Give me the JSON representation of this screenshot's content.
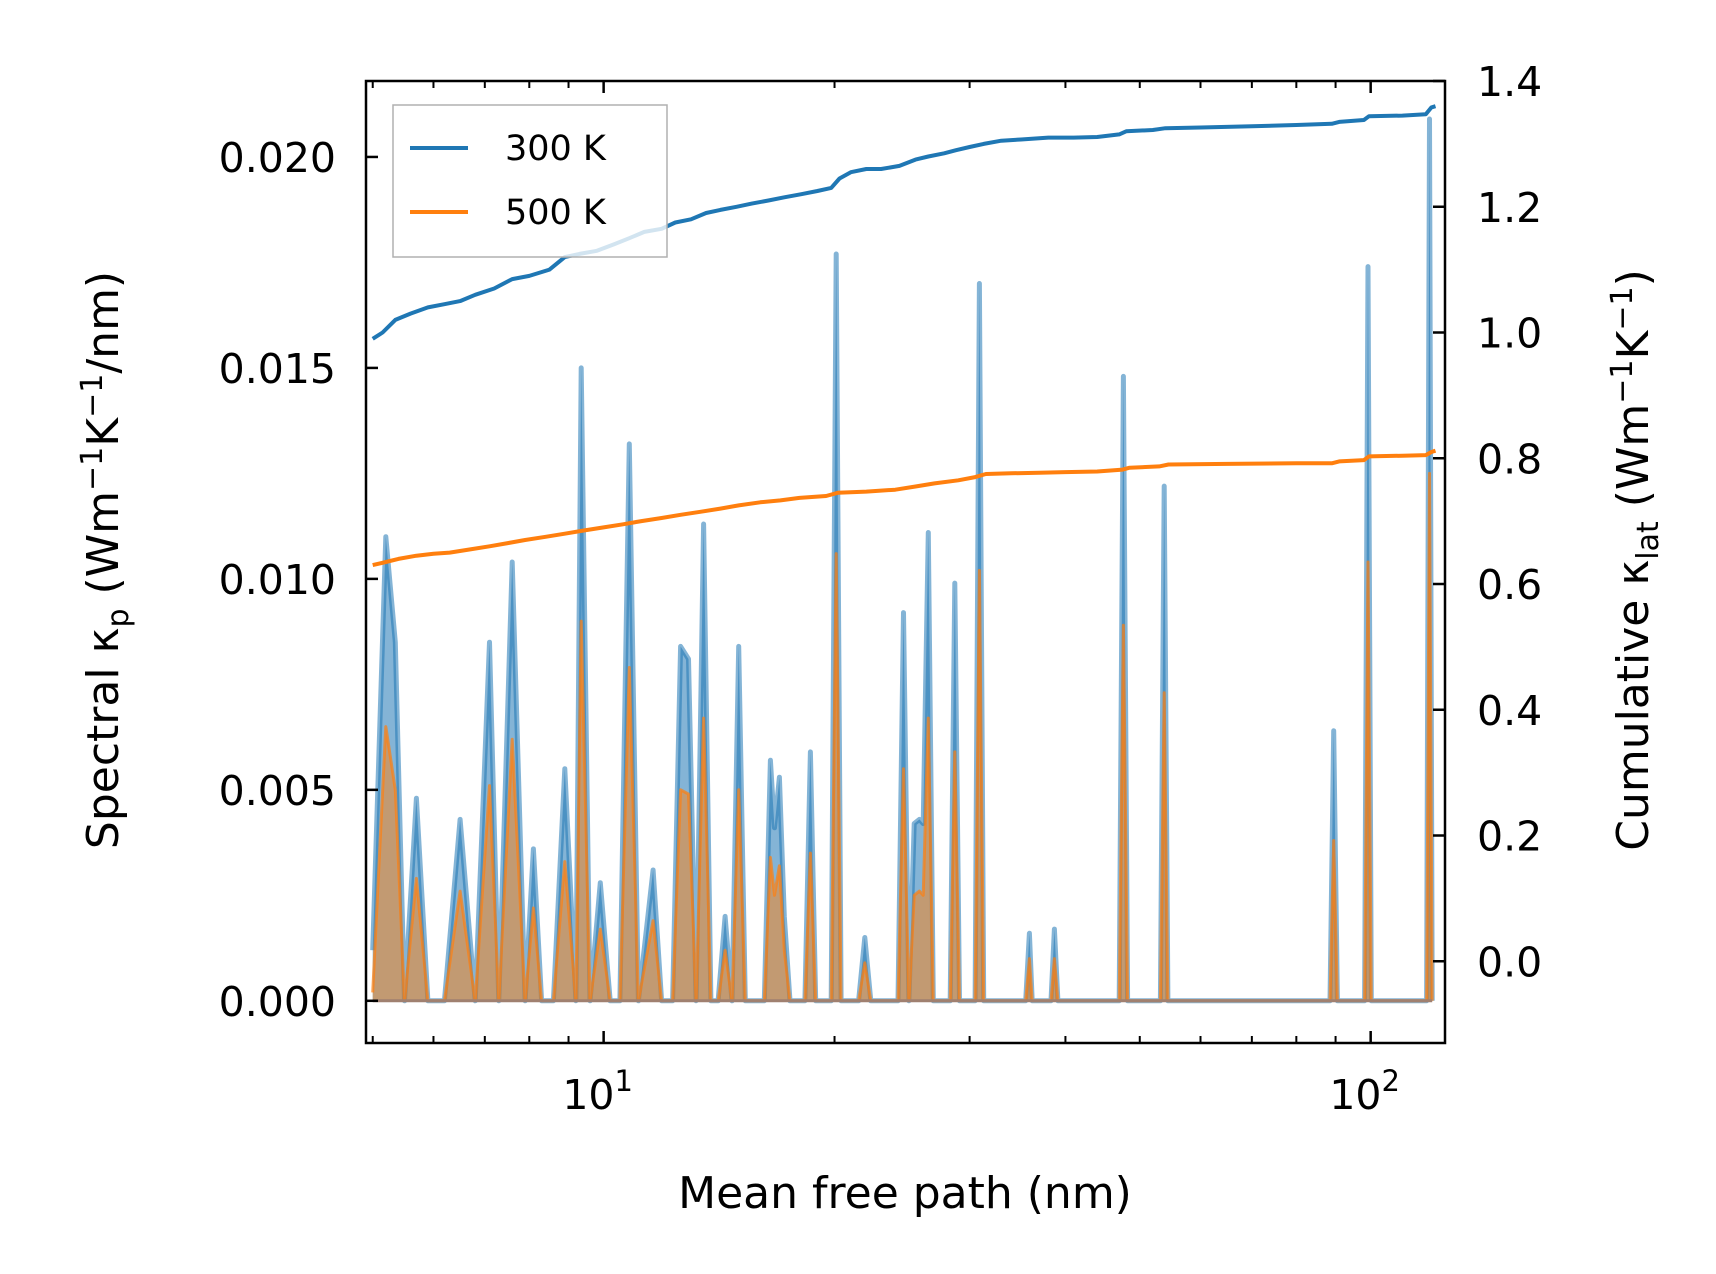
{
  "chart_data": {
    "type": "line",
    "xscale": "log",
    "xlim": [
      4.9,
      125
    ],
    "ylim_left": [
      -0.001,
      0.0218
    ],
    "ylim_right": [
      -0.13,
      1.4
    ],
    "xlabel": "Mean free path (nm)",
    "ylabel_left": {
      "main": "Spectral κ",
      "sub": "p",
      "units": " (Wm",
      "sup1": "−1",
      "mid": "K",
      "sup2": "−1",
      "tail": "/nm)"
    },
    "ylabel_right": {
      "main": "Cumulative κ",
      "sub": "lat",
      "units": " (Wm",
      "sup1": "−1",
      "mid": "K",
      "sup2": "−1",
      "tail": ")"
    },
    "x_ticks": [
      {
        "value": 10,
        "base": "10",
        "exp": "1"
      },
      {
        "value": 100,
        "base": "10",
        "exp": "2"
      }
    ],
    "y_ticks_left": [
      {
        "value": 0.0,
        "label": "0.000"
      },
      {
        "value": 0.005,
        "label": "0.005"
      },
      {
        "value": 0.01,
        "label": "0.010"
      },
      {
        "value": 0.015,
        "label": "0.015"
      },
      {
        "value": 0.02,
        "label": "0.020"
      }
    ],
    "y_ticks_right": [
      {
        "value": 0.0,
        "label": "0.0"
      },
      {
        "value": 0.2,
        "label": "0.2"
      },
      {
        "value": 0.4,
        "label": "0.4"
      },
      {
        "value": 0.6,
        "label": "0.6"
      },
      {
        "value": 0.8,
        "label": "0.8"
      },
      {
        "value": 1.0,
        "label": "1.0"
      },
      {
        "value": 1.2,
        "label": "1.2"
      },
      {
        "value": 1.4,
        "label": "1.4"
      }
    ],
    "legend": {
      "position": "upper-left",
      "entries": [
        {
          "label": "300 K",
          "color": "#1f77b4"
        },
        {
          "label": "500 K",
          "color": "#ff7f0e"
        }
      ]
    },
    "series": [
      {
        "name": "300 K",
        "color": "#1f77b4",
        "spectral": [
          [
            5.0,
            0.0012
          ],
          [
            5.2,
            0.011
          ],
          [
            5.35,
            0.0085
          ],
          [
            5.5,
            0.0
          ],
          [
            5.7,
            0.0048
          ],
          [
            5.9,
            0.0
          ],
          [
            6.2,
            0.0
          ],
          [
            6.5,
            0.0043
          ],
          [
            6.8,
            0.0
          ],
          [
            7.1,
            0.0085
          ],
          [
            7.3,
            0.0
          ],
          [
            7.6,
            0.0104
          ],
          [
            7.9,
            0.0
          ],
          [
            8.1,
            0.0036
          ],
          [
            8.3,
            0.0
          ],
          [
            8.6,
            0.0
          ],
          [
            8.9,
            0.0055
          ],
          [
            9.2,
            0.0
          ],
          [
            9.35,
            0.015
          ],
          [
            9.6,
            0.0
          ],
          [
            9.9,
            0.0028
          ],
          [
            10.2,
            0.0
          ],
          [
            10.5,
            0.0
          ],
          [
            10.8,
            0.0132
          ],
          [
            11.1,
            0.0
          ],
          [
            11.6,
            0.0031
          ],
          [
            11.9,
            0.0
          ],
          [
            12.3,
            0.0
          ],
          [
            12.6,
            0.0084
          ],
          [
            12.9,
            0.0081
          ],
          [
            13.2,
            0.0
          ],
          [
            13.5,
            0.0113
          ],
          [
            13.8,
            0.0
          ],
          [
            14.1,
            0.0
          ],
          [
            14.4,
            0.002
          ],
          [
            14.7,
            0.0
          ],
          [
            15.0,
            0.0084
          ],
          [
            15.3,
            0.0
          ],
          [
            16.2,
            0.0
          ],
          [
            16.5,
            0.0057
          ],
          [
            16.7,
            0.0041
          ],
          [
            16.95,
            0.0053
          ],
          [
            17.2,
            0.002
          ],
          [
            17.5,
            0.0
          ],
          [
            18.3,
            0.0
          ],
          [
            18.6,
            0.0059
          ],
          [
            18.9,
            0.0
          ],
          [
            19.8,
            0.0
          ],
          [
            20.1,
            0.0177
          ],
          [
            20.4,
            0.0
          ],
          [
            21.5,
            0.0
          ],
          [
            21.9,
            0.0015
          ],
          [
            22.3,
            0.0
          ],
          [
            24.2,
            0.0
          ],
          [
            24.6,
            0.0092
          ],
          [
            25.0,
            0.0
          ],
          [
            25.4,
            0.0042
          ],
          [
            25.8,
            0.0043
          ],
          [
            26.1,
            0.0042
          ],
          [
            26.5,
            0.0111
          ],
          [
            26.9,
            0.0
          ],
          [
            28.3,
            0.0
          ],
          [
            28.7,
            0.0099
          ],
          [
            29.1,
            0.0
          ],
          [
            30.5,
            0.0
          ],
          [
            30.9,
            0.017
          ],
          [
            31.3,
            0.0
          ],
          [
            35.5,
            0.0
          ],
          [
            35.9,
            0.0016
          ],
          [
            36.2,
            0.0
          ],
          [
            38.3,
            0.0
          ],
          [
            38.7,
            0.0017
          ],
          [
            39.1,
            0.0
          ],
          [
            47.0,
            0.0
          ],
          [
            47.6,
            0.0148
          ],
          [
            48.2,
            0.0
          ],
          [
            53.2,
            0.0
          ],
          [
            53.8,
            0.0122
          ],
          [
            54.4,
            0.0
          ],
          [
            88.5,
            0.0
          ],
          [
            89.5,
            0.0064
          ],
          [
            90.5,
            0.0
          ],
          [
            98.2,
            0.0
          ],
          [
            99.2,
            0.0174
          ],
          [
            100.2,
            0.0
          ],
          [
            118.3,
            0.0
          ],
          [
            119.3,
            0.0209
          ],
          [
            120.3,
            0.0
          ]
        ],
        "cumulative": [
          [
            5.0,
            0.99
          ],
          [
            5.15,
            1.0
          ],
          [
            5.35,
            1.02
          ],
          [
            5.6,
            1.03
          ],
          [
            5.9,
            1.04
          ],
          [
            6.2,
            1.045
          ],
          [
            6.5,
            1.05
          ],
          [
            6.8,
            1.06
          ],
          [
            7.2,
            1.07
          ],
          [
            7.6,
            1.085
          ],
          [
            8.0,
            1.09
          ],
          [
            8.5,
            1.1
          ],
          [
            8.9,
            1.12
          ],
          [
            9.3,
            1.125
          ],
          [
            9.8,
            1.13
          ],
          [
            10.3,
            1.14
          ],
          [
            10.8,
            1.15
          ],
          [
            11.3,
            1.16
          ],
          [
            11.9,
            1.165
          ],
          [
            12.4,
            1.175
          ],
          [
            13.0,
            1.18
          ],
          [
            13.6,
            1.19
          ],
          [
            14.2,
            1.195
          ],
          [
            14.9,
            1.2
          ],
          [
            15.6,
            1.205
          ],
          [
            16.4,
            1.21
          ],
          [
            17.2,
            1.215
          ],
          [
            18.1,
            1.22
          ],
          [
            19.0,
            1.225
          ],
          [
            19.8,
            1.23
          ],
          [
            20.3,
            1.245
          ],
          [
            21.0,
            1.255
          ],
          [
            22.0,
            1.26
          ],
          [
            23.0,
            1.26
          ],
          [
            24.3,
            1.265
          ],
          [
            25.5,
            1.275
          ],
          [
            26.5,
            1.28
          ],
          [
            27.8,
            1.285
          ],
          [
            28.8,
            1.29
          ],
          [
            30.0,
            1.295
          ],
          [
            31.3,
            1.3
          ],
          [
            33.0,
            1.305
          ],
          [
            35.0,
            1.307
          ],
          [
            38.0,
            1.31
          ],
          [
            41.0,
            1.31
          ],
          [
            44.0,
            1.311
          ],
          [
            47.0,
            1.315
          ],
          [
            48.0,
            1.32
          ],
          [
            52.0,
            1.322
          ],
          [
            54.0,
            1.325
          ],
          [
            60.0,
            1.326
          ],
          [
            70.0,
            1.328
          ],
          [
            80.0,
            1.33
          ],
          [
            89.0,
            1.332
          ],
          [
            91.0,
            1.335
          ],
          [
            98.0,
            1.338
          ],
          [
            99.5,
            1.344
          ],
          [
            110.0,
            1.345
          ],
          [
            118.0,
            1.347
          ],
          [
            120.0,
            1.358
          ],
          [
            121.5,
            1.36
          ]
        ]
      },
      {
        "name": "500 K",
        "color": "#ff7f0e",
        "spectral": [
          [
            5.0,
            0.0002
          ],
          [
            5.2,
            0.0065
          ],
          [
            5.35,
            0.005
          ],
          [
            5.5,
            0.0
          ],
          [
            5.7,
            0.0029
          ],
          [
            5.9,
            0.0
          ],
          [
            6.2,
            0.0
          ],
          [
            6.5,
            0.0026
          ],
          [
            6.8,
            0.0
          ],
          [
            7.1,
            0.0051
          ],
          [
            7.3,
            0.0
          ],
          [
            7.6,
            0.0062
          ],
          [
            7.9,
            0.0
          ],
          [
            8.1,
            0.0022
          ],
          [
            8.3,
            0.0
          ],
          [
            8.6,
            0.0
          ],
          [
            8.9,
            0.0033
          ],
          [
            9.2,
            0.0
          ],
          [
            9.35,
            0.009
          ],
          [
            9.6,
            0.0
          ],
          [
            9.9,
            0.0017
          ],
          [
            10.2,
            0.0
          ],
          [
            10.5,
            0.0
          ],
          [
            10.8,
            0.0079
          ],
          [
            11.1,
            0.0
          ],
          [
            11.6,
            0.0019
          ],
          [
            11.9,
            0.0
          ],
          [
            12.3,
            0.0
          ],
          [
            12.6,
            0.005
          ],
          [
            12.9,
            0.0049
          ],
          [
            13.2,
            0.0
          ],
          [
            13.5,
            0.0067
          ],
          [
            13.8,
            0.0
          ],
          [
            14.1,
            0.0
          ],
          [
            14.4,
            0.0012
          ],
          [
            14.7,
            0.0
          ],
          [
            15.0,
            0.005
          ],
          [
            15.3,
            0.0
          ],
          [
            16.2,
            0.0
          ],
          [
            16.5,
            0.0034
          ],
          [
            16.7,
            0.0025
          ],
          [
            16.95,
            0.0032
          ],
          [
            17.2,
            0.0012
          ],
          [
            17.5,
            0.0
          ],
          [
            18.3,
            0.0
          ],
          [
            18.6,
            0.0035
          ],
          [
            18.9,
            0.0
          ],
          [
            19.8,
            0.0
          ],
          [
            20.1,
            0.0106
          ],
          [
            20.4,
            0.0
          ],
          [
            21.5,
            0.0
          ],
          [
            21.9,
            0.0009
          ],
          [
            22.3,
            0.0
          ],
          [
            24.2,
            0.0
          ],
          [
            24.6,
            0.0055
          ],
          [
            25.0,
            0.0
          ],
          [
            25.4,
            0.0025
          ],
          [
            25.8,
            0.0026
          ],
          [
            26.1,
            0.0025
          ],
          [
            26.5,
            0.0067
          ],
          [
            26.9,
            0.0
          ],
          [
            28.3,
            0.0
          ],
          [
            28.7,
            0.0059
          ],
          [
            29.1,
            0.0
          ],
          [
            30.5,
            0.0
          ],
          [
            30.9,
            0.0102
          ],
          [
            31.3,
            0.0
          ],
          [
            35.5,
            0.0
          ],
          [
            35.9,
            0.001
          ],
          [
            36.2,
            0.0
          ],
          [
            38.3,
            0.0
          ],
          [
            38.7,
            0.001
          ],
          [
            39.1,
            0.0
          ],
          [
            47.0,
            0.0
          ],
          [
            47.6,
            0.0089
          ],
          [
            48.2,
            0.0
          ],
          [
            53.2,
            0.0
          ],
          [
            53.8,
            0.0073
          ],
          [
            54.4,
            0.0
          ],
          [
            88.5,
            0.0
          ],
          [
            89.5,
            0.0038
          ],
          [
            90.5,
            0.0
          ],
          [
            98.2,
            0.0
          ],
          [
            99.2,
            0.0104
          ],
          [
            100.2,
            0.0
          ],
          [
            118.3,
            0.0
          ],
          [
            119.3,
            0.0125
          ],
          [
            120.3,
            0.0
          ]
        ],
        "cumulative": [
          [
            5.0,
            0.63
          ],
          [
            5.2,
            0.635
          ],
          [
            5.4,
            0.64
          ],
          [
            5.7,
            0.645
          ],
          [
            6.0,
            0.648
          ],
          [
            6.3,
            0.65
          ],
          [
            6.7,
            0.655
          ],
          [
            7.1,
            0.66
          ],
          [
            7.5,
            0.665
          ],
          [
            7.9,
            0.67
          ],
          [
            8.4,
            0.675
          ],
          [
            8.9,
            0.68
          ],
          [
            9.4,
            0.685
          ],
          [
            10.0,
            0.69
          ],
          [
            10.6,
            0.695
          ],
          [
            11.2,
            0.7
          ],
          [
            11.9,
            0.705
          ],
          [
            12.6,
            0.71
          ],
          [
            13.4,
            0.715
          ],
          [
            14.2,
            0.72
          ],
          [
            15.0,
            0.725
          ],
          [
            16.0,
            0.73
          ],
          [
            17.0,
            0.733
          ],
          [
            18.0,
            0.737
          ],
          [
            19.5,
            0.74
          ],
          [
            20.2,
            0.745
          ],
          [
            22.0,
            0.747
          ],
          [
            24.0,
            0.75
          ],
          [
            25.5,
            0.755
          ],
          [
            27.0,
            0.76
          ],
          [
            29.0,
            0.765
          ],
          [
            30.5,
            0.77
          ],
          [
            31.5,
            0.775
          ],
          [
            34.0,
            0.776
          ],
          [
            37.0,
            0.777
          ],
          [
            40.0,
            0.778
          ],
          [
            44.0,
            0.779
          ],
          [
            47.5,
            0.782
          ],
          [
            48.5,
            0.785
          ],
          [
            53.0,
            0.787
          ],
          [
            54.5,
            0.79
          ],
          [
            65.0,
            0.791
          ],
          [
            80.0,
            0.792
          ],
          [
            89.0,
            0.792
          ],
          [
            91.0,
            0.795
          ],
          [
            98.0,
            0.797
          ],
          [
            99.5,
            0.803
          ],
          [
            110.0,
            0.804
          ],
          [
            118.0,
            0.805
          ],
          [
            120.0,
            0.81
          ],
          [
            121.5,
            0.812
          ]
        ]
      }
    ]
  }
}
